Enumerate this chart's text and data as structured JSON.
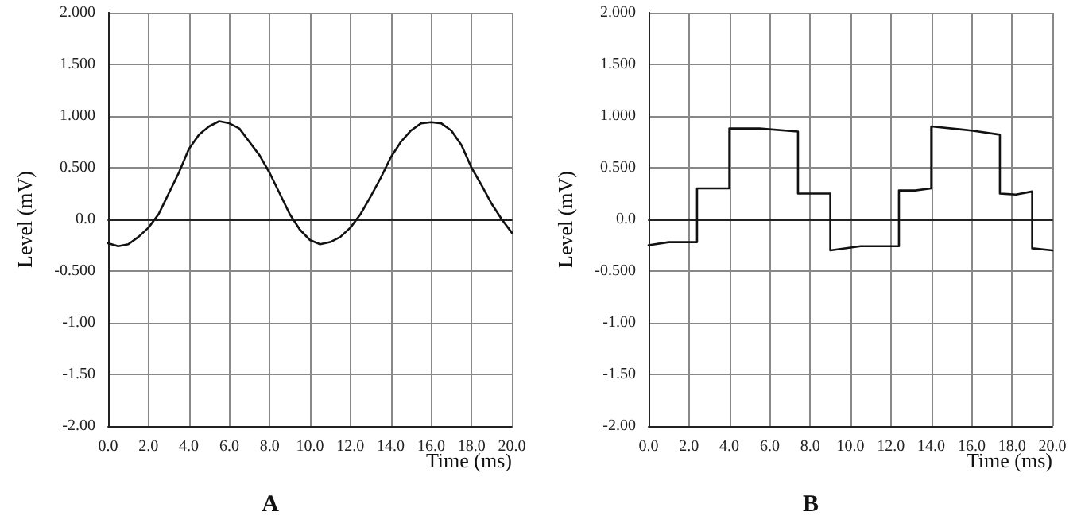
{
  "chart_data": [
    {
      "type": "line",
      "title": "A",
      "xlabel": "Time (ms)",
      "ylabel": "Level (mV)",
      "grid": true,
      "marker": "none",
      "line_style": "solid",
      "xlim": [
        0,
        20
      ],
      "ylim": [
        -2,
        2
      ],
      "xticks": [
        {
          "value": 0,
          "label": "0.0"
        },
        {
          "value": 2,
          "label": "2.0"
        },
        {
          "value": 4,
          "label": "4.0"
        },
        {
          "value": 6,
          "label": "6.0"
        },
        {
          "value": 8,
          "label": "8.0"
        },
        {
          "value": 10,
          "label": "10.0"
        },
        {
          "value": 12,
          "label": "12.0"
        },
        {
          "value": 14,
          "label": "14.0"
        },
        {
          "value": 16,
          "label": "16.0"
        },
        {
          "value": 18,
          "label": "18.0"
        },
        {
          "value": 20,
          "label": "20.0"
        }
      ],
      "yticks": [
        {
          "value": -2,
          "label": "-2.00"
        },
        {
          "value": -1.5,
          "label": "-1.50"
        },
        {
          "value": -1,
          "label": "-1.00"
        },
        {
          "value": -0.5,
          "label": "-0.500"
        },
        {
          "value": 0,
          "label": "0.0"
        },
        {
          "value": 0.5,
          "label": "0.500"
        },
        {
          "value": 1,
          "label": "1.000"
        },
        {
          "value": 1.5,
          "label": "1.500"
        },
        {
          "value": 2,
          "label": "2.000"
        }
      ],
      "series": [
        {
          "color": "#111111",
          "x": [
            0,
            0.5,
            1,
            1.5,
            2,
            2.5,
            3,
            3.5,
            4,
            4.5,
            5,
            5.5,
            6,
            6.5,
            7,
            7.5,
            8,
            8.5,
            9,
            9.5,
            10,
            10.5,
            11,
            11.5,
            12,
            12.5,
            13,
            13.5,
            14,
            14.5,
            15,
            15.5,
            16,
            16.5,
            17,
            17.5,
            18,
            18.5,
            19,
            19.5,
            20
          ],
          "values": [
            -0.23,
            -0.26,
            -0.24,
            -0.17,
            -0.08,
            0.05,
            0.25,
            0.45,
            0.68,
            0.82,
            0.9,
            0.95,
            0.93,
            0.88,
            0.75,
            0.62,
            0.45,
            0.25,
            0.05,
            -0.1,
            -0.2,
            -0.24,
            -0.22,
            -0.17,
            -0.08,
            0.05,
            0.22,
            0.4,
            0.6,
            0.75,
            0.86,
            0.93,
            0.94,
            0.93,
            0.86,
            0.72,
            0.5,
            0.33,
            0.15,
            0.0,
            -0.13
          ]
        }
      ]
    },
    {
      "type": "line",
      "title": "B",
      "xlabel": "Time (ms)",
      "ylabel": "Level (mV)",
      "grid": true,
      "marker": "none",
      "line_style": "solid",
      "xlim": [
        0,
        20
      ],
      "ylim": [
        -2,
        2
      ],
      "xticks": [
        {
          "value": 0,
          "label": "0.0"
        },
        {
          "value": 2,
          "label": "2.0"
        },
        {
          "value": 4,
          "label": "4.0"
        },
        {
          "value": 6,
          "label": "6.0"
        },
        {
          "value": 8,
          "label": "8.0"
        },
        {
          "value": 10,
          "label": "10.0"
        },
        {
          "value": 12,
          "label": "12.0"
        },
        {
          "value": 14,
          "label": "14.0"
        },
        {
          "value": 16,
          "label": "16.0"
        },
        {
          "value": 18,
          "label": "18.0"
        },
        {
          "value": 20,
          "label": "20.0"
        }
      ],
      "yticks": [
        {
          "value": -2,
          "label": "-2.00"
        },
        {
          "value": -1.5,
          "label": "-1.50"
        },
        {
          "value": -1,
          "label": "-1.00"
        },
        {
          "value": -0.5,
          "label": "-0.500"
        },
        {
          "value": 0,
          "label": "0.0"
        },
        {
          "value": 0.5,
          "label": "0.500"
        },
        {
          "value": 1,
          "label": "1.000"
        },
        {
          "value": 1.5,
          "label": "1.500"
        },
        {
          "value": 2,
          "label": "2.000"
        }
      ],
      "series": [
        {
          "color": "#111111",
          "x": [
            0,
            1,
            2.4,
            2.4,
            3.2,
            4.0,
            4.0,
            5.5,
            7.4,
            7.4,
            8.2,
            9.0,
            9.0,
            10.5,
            12.4,
            12.4,
            13.2,
            14.0,
            14.0,
            15.5,
            16,
            17.4,
            17.4,
            18.2,
            19.0,
            19.0,
            20
          ],
          "values": [
            -0.25,
            -0.22,
            -0.22,
            0.3,
            0.3,
            0.3,
            0.88,
            0.88,
            0.85,
            0.25,
            0.25,
            0.25,
            -0.3,
            -0.26,
            -0.26,
            0.28,
            0.28,
            0.3,
            0.9,
            0.87,
            0.86,
            0.82,
            0.25,
            0.24,
            0.27,
            -0.28,
            -0.3
          ]
        }
      ]
    }
  ]
}
